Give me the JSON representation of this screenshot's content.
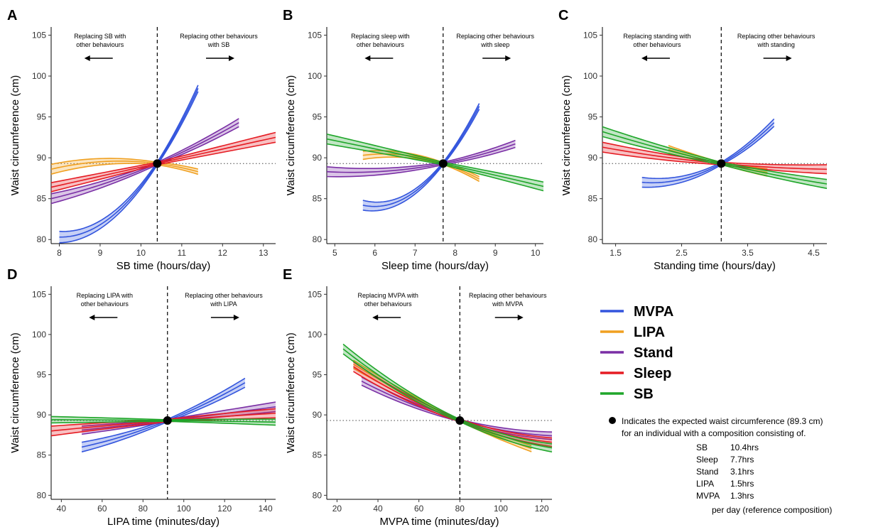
{
  "legend": {
    "items": [
      {
        "name": "MVPA",
        "color": "#3355dd"
      },
      {
        "name": "LIPA",
        "color": "#f0a020"
      },
      {
        "name": "Stand",
        "color": "#7a2fa5"
      },
      {
        "name": "Sleep",
        "color": "#e51c23"
      },
      {
        "name": "SB",
        "color": "#1fa62a"
      }
    ],
    "note_line1": "Indicates the expected waist circumference (89.3 cm)",
    "note_line2": "for an individual with a composition consisting of.",
    "composition": [
      {
        "label": "SB",
        "value": "10.4hrs"
      },
      {
        "label": "Sleep",
        "value": "7.7hrs"
      },
      {
        "label": "Stand",
        "value": "3.1hrs"
      },
      {
        "label": "LIPA",
        "value": "1.5hrs"
      },
      {
        "label": "MVPA",
        "value": "1.3hrs"
      }
    ],
    "footer": "per day (reference composition)"
  },
  "chart_data": [
    {
      "panel": "A",
      "type": "line",
      "xlabel": "SB time (hours/day)",
      "ylabel": "Waist circumference (cm)",
      "xlim": [
        7.8,
        13.3
      ],
      "ylim": [
        79.5,
        106
      ],
      "xticks": [
        8,
        9,
        10,
        11,
        12,
        13
      ],
      "yticks": [
        80,
        85,
        90,
        95,
        100,
        105
      ],
      "reference": {
        "x": 10.4,
        "y": 89.3
      },
      "annotation_left": [
        "Replacing SB with",
        "other behaviours"
      ],
      "annotation_right": [
        "Replacing other behaviours",
        "with SB"
      ],
      "series": [
        {
          "name": "MVPA",
          "x": [
            8.0,
            10.4,
            11.4
          ],
          "y": [
            80.3,
            89.3,
            98.5
          ],
          "halfwidth": 0.7
        },
        {
          "name": "LIPA",
          "x": [
            7.8,
            10.4,
            11.4
          ],
          "y": [
            88.6,
            89.3,
            88.3
          ],
          "halfwidth": 0.6
        },
        {
          "name": "Stand",
          "x": [
            7.8,
            10.4,
            12.4
          ],
          "y": [
            85.0,
            89.3,
            94.3
          ],
          "halfwidth": 0.6
        },
        {
          "name": "Sleep",
          "x": [
            7.8,
            10.4,
            13.3
          ],
          "y": [
            86.4,
            89.3,
            92.5
          ],
          "halfwidth": 0.6
        }
      ]
    },
    {
      "panel": "B",
      "type": "line",
      "xlabel": "Sleep time (hours/day)",
      "ylabel": "Waist circumference (cm)",
      "xlim": [
        4.8,
        10.2
      ],
      "ylim": [
        79.5,
        106
      ],
      "xticks": [
        5,
        6,
        7,
        8,
        9,
        10
      ],
      "yticks": [
        80,
        85,
        90,
        95,
        100,
        105
      ],
      "reference": {
        "x": 7.7,
        "y": 89.3
      },
      "annotation_left": [
        "Replacing sleep with",
        "other behaviours"
      ],
      "annotation_right": [
        "Replacing other behaviours",
        "with sleep"
      ],
      "series": [
        {
          "name": "MVPA",
          "x": [
            5.7,
            7.7,
            8.6
          ],
          "y": [
            84.2,
            89.3,
            96.3
          ],
          "halfwidth": 0.6
        },
        {
          "name": "LIPA",
          "x": [
            5.7,
            7.7,
            8.6
          ],
          "y": [
            90.3,
            89.3,
            87.4
          ],
          "halfwidth": 0.5
        },
        {
          "name": "Stand",
          "x": [
            4.8,
            7.7,
            9.5
          ],
          "y": [
            88.3,
            89.3,
            91.7
          ],
          "halfwidth": 0.6
        },
        {
          "name": "SB",
          "x": [
            4.8,
            7.7,
            10.2
          ],
          "y": [
            92.3,
            89.3,
            86.5
          ],
          "halfwidth": 0.6
        }
      ]
    },
    {
      "panel": "C",
      "type": "line",
      "xlabel": "Standing time (hours/day)",
      "ylabel": "Waist circumference (cm)",
      "xlim": [
        1.3,
        4.7
      ],
      "ylim": [
        79.5,
        106
      ],
      "xticks": [
        1.5,
        2.5,
        3.5,
        4.5
      ],
      "yticks": [
        80,
        85,
        90,
        95,
        100,
        105
      ],
      "reference": {
        "x": 3.1,
        "y": 89.3
      },
      "annotation_left": [
        "Replacing standing with",
        "other behaviours"
      ],
      "annotation_right": [
        "Replacing other behaviours",
        "with standing"
      ],
      "series": [
        {
          "name": "MVPA",
          "x": [
            1.9,
            3.1,
            3.9
          ],
          "y": [
            87.0,
            89.3,
            94.3
          ],
          "halfwidth": 0.6
        },
        {
          "name": "LIPA",
          "x": [
            2.3,
            3.1,
            3.8
          ],
          "y": [
            91.0,
            89.3,
            88.2
          ],
          "halfwidth": 0.5
        },
        {
          "name": "Sleep",
          "x": [
            1.3,
            3.1,
            4.7
          ],
          "y": [
            91.3,
            89.3,
            88.6
          ],
          "halfwidth": 0.6
        },
        {
          "name": "SB",
          "x": [
            1.3,
            3.1,
            4.7
          ],
          "y": [
            93.2,
            89.3,
            86.8
          ],
          "halfwidth": 0.6
        }
      ]
    },
    {
      "panel": "D",
      "type": "line",
      "xlabel": "LIPA time (minutes/day)",
      "ylabel": "Waist circumference (cm)",
      "xlim": [
        35,
        145
      ],
      "ylim": [
        79.5,
        106
      ],
      "xticks": [
        40,
        60,
        80,
        100,
        120,
        140
      ],
      "yticks": [
        80,
        85,
        90,
        95,
        100,
        105
      ],
      "reference": {
        "x": 92,
        "y": 89.3
      },
      "annotation_left": [
        "Replacing LIPA with",
        "other behaviours"
      ],
      "annotation_right": [
        "Replacing other behaviours",
        "with LIPA"
      ],
      "series": [
        {
          "name": "MVPA",
          "x": [
            50,
            92,
            130
          ],
          "y": [
            86.0,
            89.3,
            94.0
          ],
          "halfwidth": 0.6
        },
        {
          "name": "Stand",
          "x": [
            50,
            92,
            145
          ],
          "y": [
            88.1,
            89.3,
            91.0
          ],
          "halfwidth": 0.6
        },
        {
          "name": "Sleep",
          "x": [
            35,
            92,
            145
          ],
          "y": [
            88.0,
            89.3,
            90.2
          ],
          "halfwidth": 0.6
        },
        {
          "name": "SB",
          "x": [
            35,
            92,
            145
          ],
          "y": [
            89.4,
            89.3,
            89.1
          ],
          "halfwidth": 0.4
        }
      ]
    },
    {
      "panel": "E",
      "type": "line",
      "xlabel": "MVPA time (minutes/day)",
      "ylabel": "Waist circumference (cm)",
      "xlim": [
        15,
        125
      ],
      "ylim": [
        79.5,
        106
      ],
      "xticks": [
        20,
        40,
        60,
        80,
        100,
        120
      ],
      "yticks": [
        80,
        85,
        90,
        95,
        100,
        105
      ],
      "reference": {
        "x": 80,
        "y": 89.3
      },
      "annotation_left": [
        "Replacing MVPA with",
        "other behaviours"
      ],
      "annotation_right": [
        "Replacing other behaviours",
        "with MVPA"
      ],
      "series": [
        {
          "name": "LIPA",
          "x": [
            28,
            80,
            115
          ],
          "y": [
            96.3,
            89.3,
            85.8
          ],
          "halfwidth": 0.5
        },
        {
          "name": "Stand",
          "x": [
            32,
            80,
            125
          ],
          "y": [
            94.2,
            89.3,
            87.4
          ],
          "halfwidth": 0.5
        },
        {
          "name": "Sleep",
          "x": [
            28,
            80,
            125
          ],
          "y": [
            96.0,
            89.3,
            86.6
          ],
          "halfwidth": 0.6
        },
        {
          "name": "SB",
          "x": [
            23,
            80,
            125
          ],
          "y": [
            98.2,
            89.3,
            85.9
          ],
          "halfwidth": 0.6
        }
      ]
    }
  ]
}
